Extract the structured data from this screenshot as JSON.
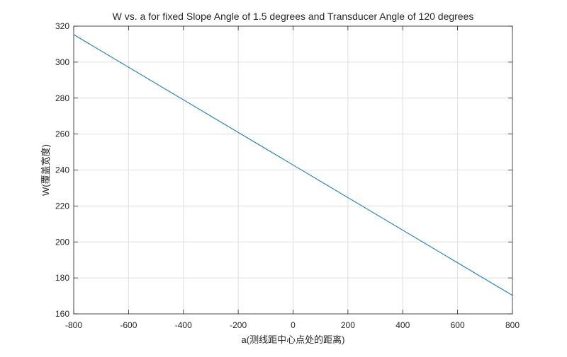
{
  "chart_data": {
    "type": "line",
    "title": "W vs. a for fixed Slope Angle of 1.5 degrees and Transducer Angle of 120 degrees",
    "xlabel": "a(测线距中心点处的距离)",
    "ylabel": "W(覆盖宽度)",
    "xlim": [
      -800,
      800
    ],
    "ylim": [
      160,
      320
    ],
    "xticks": [
      -800,
      -600,
      -400,
      -200,
      0,
      200,
      400,
      600,
      800
    ],
    "yticks": [
      160,
      180,
      200,
      220,
      240,
      260,
      280,
      300,
      320
    ],
    "grid": true,
    "series": [
      {
        "color": "#0072BD",
        "x": [
          -800,
          0,
          800
        ],
        "y": [
          315.3,
          242.8,
          170.3
        ]
      }
    ]
  }
}
